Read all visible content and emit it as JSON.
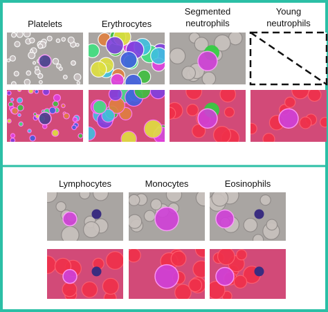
{
  "top_row": [
    {
      "lines": [
        "Platelets"
      ]
    },
    {
      "lines": [
        "Erythrocytes"
      ]
    },
    {
      "lines": [
        "Segmented",
        "neutrophils"
      ]
    },
    {
      "lines": [
        "Young",
        "neutrophils"
      ]
    }
  ],
  "bottom_row": [
    {
      "lines": [
        "Lymphocytes"
      ]
    },
    {
      "lines": [
        "Monocytes"
      ]
    },
    {
      "lines": [
        "Eosinophils"
      ]
    }
  ]
}
